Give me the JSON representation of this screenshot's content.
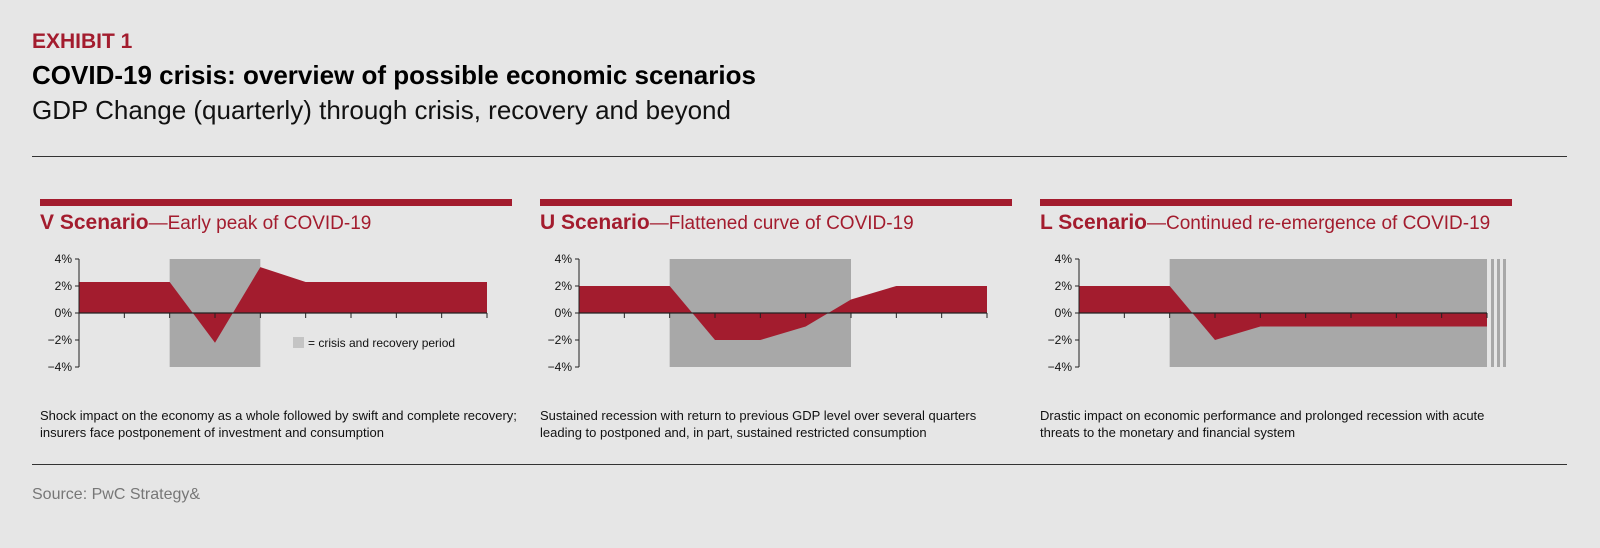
{
  "header": {
    "exhibit": "EXHIBIT 1",
    "title": "COVID-19 crisis: overview of possible economic scenarios",
    "subtitle": "GDP Change (quarterly) through crisis, recovery and beyond"
  },
  "legend": {
    "label": "= crisis and recovery period"
  },
  "source": "Source: PwC Strategy&",
  "colors": {
    "accent": "#a31c2e",
    "shade": "#a8a8a8"
  },
  "chart_data": [
    {
      "type": "area",
      "name": "V Scenario",
      "subtitle": "—Early peak of COVID-19",
      "x": [
        0,
        1,
        2,
        3,
        4,
        5,
        6,
        7,
        8,
        9
      ],
      "values": [
        2.3,
        2.3,
        2.3,
        -2.2,
        3.4,
        2.3,
        2.3,
        2.3,
        2.3,
        2.3
      ],
      "shade_range": [
        2,
        4
      ],
      "continues": false,
      "ylim": [
        -4,
        4
      ],
      "yticks": [
        "4%",
        "2%",
        "0%",
        "−2%",
        "−4%"
      ],
      "description": "Shock impact on the economy as a whole followed by swift and complete recovery; insurers face postponement of investment and consumption"
    },
    {
      "type": "area",
      "name": "U Scenario",
      "subtitle": "—Flattened curve of COVID-19",
      "x": [
        0,
        1,
        2,
        3,
        4,
        5,
        6,
        7,
        8,
        9
      ],
      "values": [
        2,
        2,
        2,
        -2,
        -2,
        -1,
        1,
        2,
        2,
        2
      ],
      "shade_range": [
        2,
        6
      ],
      "continues": false,
      "ylim": [
        -4,
        4
      ],
      "yticks": [
        "4%",
        "2%",
        "0%",
        "−2%",
        "−4%"
      ],
      "description": "Sustained recession with return to previous GDP level over several quarters leading to postponed and, in part, sustained restricted consumption"
    },
    {
      "type": "area",
      "name": "L Scenario",
      "subtitle": "—Continued re-emergence of COVID-19",
      "x": [
        0,
        1,
        2,
        3,
        4,
        5,
        6,
        7,
        8,
        9
      ],
      "values": [
        2,
        2,
        2,
        -2,
        -1,
        -1,
        -1,
        -1,
        -1,
        -1
      ],
      "shade_range": [
        2,
        9
      ],
      "continues": true,
      "ylim": [
        -4,
        4
      ],
      "yticks": [
        "4%",
        "2%",
        "0%",
        "−2%",
        "−4%"
      ],
      "description": "Drastic impact on economic performance and prolonged recession with acute threats to the monetary and financial system"
    }
  ]
}
